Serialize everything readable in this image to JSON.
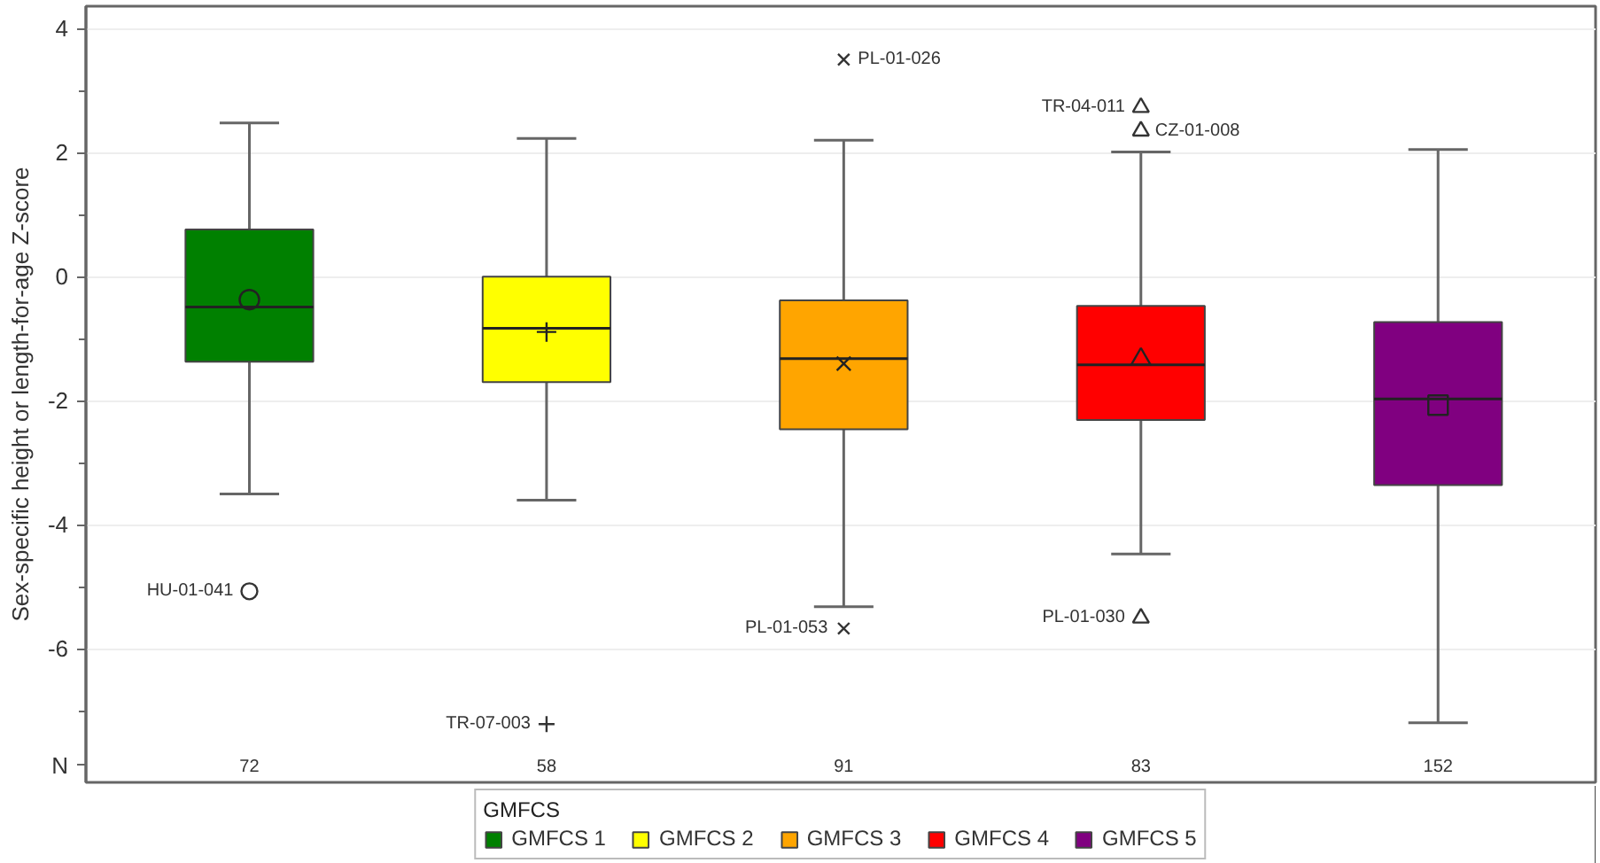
{
  "chart_data": {
    "type": "box",
    "categories": [
      null,
      null,
      null,
      null,
      null
    ],
    "ylabel": "Sex-specific height or length-for-age Z-score",
    "legend_title": "GMFCS",
    "series": [
      {
        "name": "GMFCS 1",
        "color": "#008000",
        "marker": "circle",
        "boxes": [
          {
            "low": -3.5,
            "q1": -1.37,
            "median": -0.49,
            "q3": 0.76,
            "high": 2.48,
            "mean": -0.37,
            "outliers": [
              -5.07
            ]
          },
          null,
          null,
          null,
          null
        ]
      },
      {
        "name": "GMFCS 2",
        "color": "#ffff00",
        "marker": "cross",
        "boxes": [
          null,
          {
            "low": -3.6,
            "q1": -1.7,
            "median": -0.83,
            "q3": 0.0,
            "high": 2.23,
            "mean": -0.89,
            "outliers": [
              -7.21
            ]
          },
          null,
          null,
          null
        ]
      },
      {
        "name": "GMFCS 3",
        "color": "#ffa500",
        "marker": "x",
        "boxes": [
          null,
          null,
          {
            "low": -5.32,
            "q1": -2.46,
            "median": -1.32,
            "q3": -0.38,
            "high": 2.2,
            "mean": -1.4,
            "outliers": [
              3.5,
              -5.67
            ]
          },
          null,
          null
        ]
      },
      {
        "name": "GMFCS 4",
        "color": "#ff0000",
        "marker": "triangle",
        "boxes": [
          null,
          null,
          null,
          {
            "low": -4.47,
            "q1": -2.31,
            "median": -1.42,
            "q3": -0.47,
            "high": 2.01,
            "mean": -1.33,
            "outliers": [
              2.73,
              2.35,
              -5.5
            ]
          },
          null
        ]
      },
      {
        "name": "GMFCS 5",
        "color": "#800080",
        "marker": "square",
        "boxes": [
          null,
          null,
          null,
          null,
          {
            "low": -7.19,
            "q1": -3.36,
            "median": -1.97,
            "q3": -0.73,
            "high": 2.05,
            "mean": -2.07
          }
        ]
      }
    ],
    "ylim": [
      -8.15,
      4.36
    ],
    "yticks": [
      -6,
      -4,
      -2,
      0,
      2,
      4,
      {
        "value": -7,
        "label": null
      },
      {
        "value": -5,
        "label": null
      },
      {
        "value": -3,
        "label": null
      },
      {
        "value": -1,
        "label": null
      },
      {
        "value": 1,
        "label": null
      },
      {
        "value": 3,
        "label": null
      }
    ],
    "grid": "y",
    "legend": "bottom",
    "tick_labels": "y",
    "annotations": [
      "N",
      "72",
      "58",
      "91",
      "83",
      "152",
      "HU-01-041",
      "TR-07-003",
      "PL-01-026",
      "PL-01-053",
      "TR-04-011",
      "CZ-01-008",
      "PL-01-030"
    ]
  }
}
